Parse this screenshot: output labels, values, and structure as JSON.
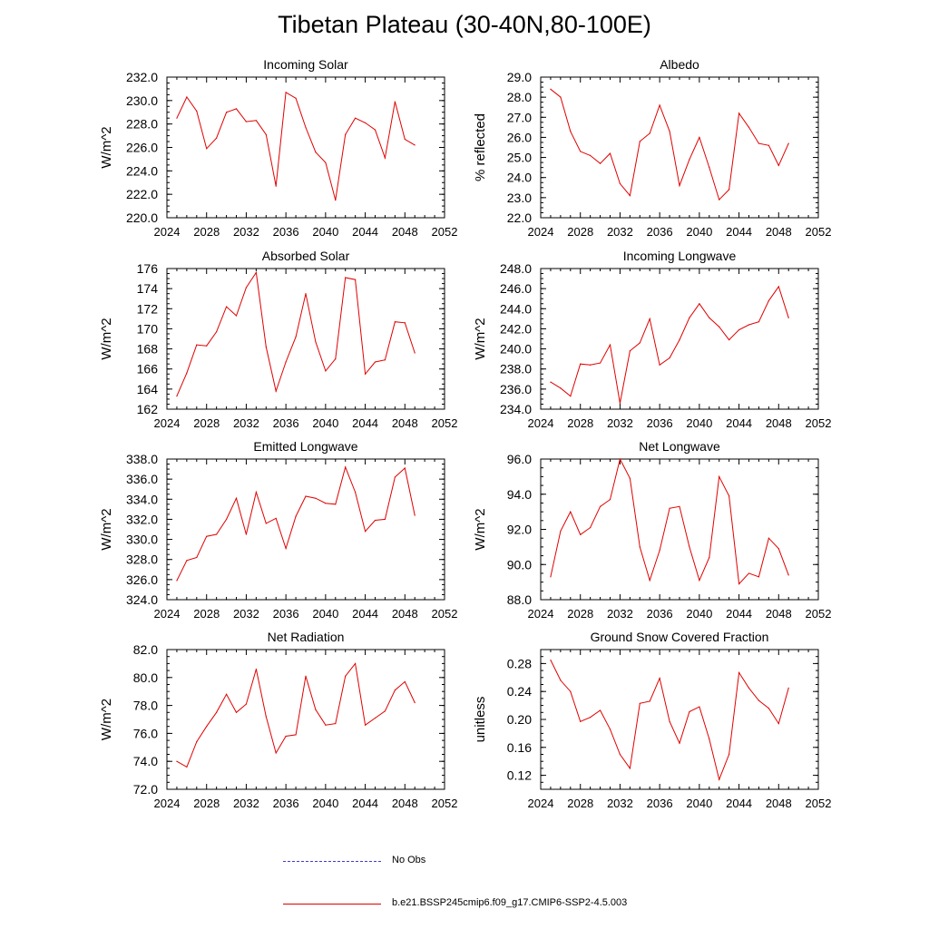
{
  "title": "Tibetan Plateau (30-40N,80-100E)",
  "line_color": "#e00000",
  "chart_data": [
    {
      "type": "line",
      "title": "Incoming Solar",
      "xlabel": "",
      "ylabel": "W/m^2",
      "xlim": [
        2024,
        2052
      ],
      "ylim": [
        220,
        232
      ],
      "xticks": [
        2024,
        2028,
        2032,
        2036,
        2040,
        2044,
        2048,
        2052
      ],
      "xtick_labels": [
        "2024",
        "2028",
        "2032",
        "2036",
        "2040",
        "2044",
        "2048",
        "2052"
      ],
      "yticks": [
        220,
        222,
        224,
        226,
        228,
        230,
        232
      ],
      "ytick_labels": [
        "220.0",
        "222.0",
        "224.0",
        "226.0",
        "228.0",
        "230.0",
        "232.0"
      ],
      "x": [
        2025,
        2026,
        2027,
        2028,
        2029,
        2030,
        2031,
        2032,
        2033,
        2034,
        2035,
        2036,
        2037,
        2038,
        2039,
        2040,
        2041,
        2042,
        2043,
        2044,
        2045,
        2046,
        2047,
        2048,
        2049
      ],
      "y": [
        228.5,
        230.3,
        229.1,
        225.9,
        226.8,
        229.0,
        229.3,
        228.2,
        228.3,
        227.1,
        222.7,
        230.7,
        230.2,
        227.7,
        225.6,
        224.7,
        221.5,
        227.1,
        228.5,
        228.1,
        227.5,
        225.1,
        229.9,
        226.7,
        226.2
      ]
    },
    {
      "type": "line",
      "title": "Albedo",
      "xlabel": "",
      "ylabel": "% reflected",
      "xlim": [
        2024,
        2052
      ],
      "ylim": [
        22,
        29
      ],
      "xticks": [
        2024,
        2028,
        2032,
        2036,
        2040,
        2044,
        2048,
        2052
      ],
      "xtick_labels": [
        "2024",
        "2028",
        "2032",
        "2036",
        "2040",
        "2044",
        "2048",
        "2052"
      ],
      "yticks": [
        22,
        23,
        24,
        25,
        26,
        27,
        28,
        29
      ],
      "ytick_labels": [
        "22.0",
        "23.0",
        "24.0",
        "25.0",
        "26.0",
        "27.0",
        "28.0",
        "29.0"
      ],
      "x": [
        2025,
        2026,
        2027,
        2028,
        2029,
        2030,
        2031,
        2032,
        2033,
        2034,
        2035,
        2036,
        2037,
        2038,
        2039,
        2040,
        2041,
        2042,
        2043,
        2044,
        2045,
        2046,
        2047,
        2048,
        2049
      ],
      "y": [
        28.4,
        28.0,
        26.3,
        25.3,
        25.1,
        24.7,
        25.2,
        23.7,
        23.1,
        25.8,
        26.2,
        27.6,
        26.3,
        23.6,
        24.9,
        26.0,
        24.5,
        22.9,
        23.4,
        27.2,
        26.5,
        25.7,
        25.6,
        24.6,
        25.7
      ]
    },
    {
      "type": "line",
      "title": "Absorbed Solar",
      "xlabel": "",
      "ylabel": "W/m^2",
      "xlim": [
        2024,
        2052
      ],
      "ylim": [
        162,
        176
      ],
      "xticks": [
        2024,
        2028,
        2032,
        2036,
        2040,
        2044,
        2048,
        2052
      ],
      "xtick_labels": [
        "2024",
        "2028",
        "2032",
        "2036",
        "2040",
        "2044",
        "2048",
        "2052"
      ],
      "yticks": [
        162,
        164,
        166,
        168,
        170,
        172,
        174,
        176
      ],
      "ytick_labels": [
        "162",
        "164",
        "166",
        "168",
        "170",
        "172",
        "174",
        "176"
      ],
      "x": [
        2025,
        2026,
        2027,
        2028,
        2029,
        2030,
        2031,
        2032,
        2033,
        2034,
        2035,
        2036,
        2037,
        2038,
        2039,
        2040,
        2041,
        2042,
        2043,
        2044,
        2045,
        2046,
        2047,
        2048,
        2049
      ],
      "y": [
        163.3,
        165.6,
        168.4,
        168.3,
        169.7,
        172.2,
        171.3,
        174.1,
        175.6,
        168.2,
        163.8,
        166.7,
        169.2,
        173.5,
        168.7,
        165.8,
        167.0,
        175.1,
        174.9,
        165.5,
        166.7,
        166.9,
        170.7,
        170.6,
        167.6
      ]
    },
    {
      "type": "line",
      "title": "Incoming Longwave",
      "xlabel": "",
      "ylabel": "W/m^2",
      "xlim": [
        2024,
        2052
      ],
      "ylim": [
        234,
        248
      ],
      "xticks": [
        2024,
        2028,
        2032,
        2036,
        2040,
        2044,
        2048,
        2052
      ],
      "xtick_labels": [
        "2024",
        "2028",
        "2032",
        "2036",
        "2040",
        "2044",
        "2048",
        "2052"
      ],
      "yticks": [
        234,
        236,
        238,
        240,
        242,
        244,
        246,
        248
      ],
      "ytick_labels": [
        "234.0",
        "236.0",
        "238.0",
        "240.0",
        "242.0",
        "244.0",
        "246.0",
        "248.0"
      ],
      "x": [
        2025,
        2026,
        2027,
        2028,
        2029,
        2030,
        2031,
        2032,
        2033,
        2034,
        2035,
        2036,
        2037,
        2038,
        2039,
        2040,
        2041,
        2042,
        2043,
        2044,
        2045,
        2046,
        2047,
        2048,
        2049
      ],
      "y": [
        236.7,
        236.1,
        235.3,
        238.5,
        238.4,
        238.6,
        240.4,
        234.6,
        239.8,
        240.6,
        243.0,
        238.4,
        239.1,
        240.9,
        243.1,
        244.5,
        243.1,
        242.2,
        240.9,
        241.9,
        242.4,
        242.7,
        244.8,
        246.2,
        243.1
      ]
    },
    {
      "type": "line",
      "title": "Emitted Longwave",
      "xlabel": "",
      "ylabel": "W/m^2",
      "xlim": [
        2024,
        2052
      ],
      "ylim": [
        324,
        338
      ],
      "xticks": [
        2024,
        2028,
        2032,
        2036,
        2040,
        2044,
        2048,
        2052
      ],
      "xtick_labels": [
        "2024",
        "2028",
        "2032",
        "2036",
        "2040",
        "2044",
        "2048",
        "2052"
      ],
      "yticks": [
        324,
        326,
        328,
        330,
        332,
        334,
        336,
        338
      ],
      "ytick_labels": [
        "324.0",
        "326.0",
        "328.0",
        "330.0",
        "332.0",
        "334.0",
        "336.0",
        "338.0"
      ],
      "x": [
        2025,
        2026,
        2027,
        2028,
        2029,
        2030,
        2031,
        2032,
        2033,
        2034,
        2035,
        2036,
        2037,
        2038,
        2039,
        2040,
        2041,
        2042,
        2043,
        2044,
        2045,
        2046,
        2047,
        2048,
        2049
      ],
      "y": [
        325.9,
        327.9,
        328.2,
        330.3,
        330.5,
        332.0,
        334.1,
        330.5,
        334.7,
        331.6,
        332.1,
        329.1,
        332.3,
        334.3,
        334.1,
        333.6,
        333.5,
        337.2,
        334.7,
        330.8,
        331.9,
        332.0,
        336.2,
        337.1,
        332.4
      ]
    },
    {
      "type": "line",
      "title": "Net Longwave",
      "xlabel": "",
      "ylabel": "W/m^2",
      "xlim": [
        2024,
        2052
      ],
      "ylim": [
        88,
        96
      ],
      "xticks": [
        2024,
        2028,
        2032,
        2036,
        2040,
        2044,
        2048,
        2052
      ],
      "xtick_labels": [
        "2024",
        "2028",
        "2032",
        "2036",
        "2040",
        "2044",
        "2048",
        "2052"
      ],
      "yticks": [
        88,
        90,
        92,
        94,
        96
      ],
      "ytick_labels": [
        "88.0",
        "90.0",
        "92.0",
        "94.0",
        "96.0"
      ],
      "x": [
        2025,
        2026,
        2027,
        2028,
        2029,
        2030,
        2031,
        2032,
        2033,
        2034,
        2035,
        2036,
        2037,
        2038,
        2039,
        2040,
        2041,
        2042,
        2043,
        2044,
        2045,
        2046,
        2047,
        2048,
        2049
      ],
      "y": [
        89.3,
        91.9,
        93.0,
        91.7,
        92.1,
        93.3,
        93.7,
        96.0,
        94.9,
        91.0,
        89.1,
        90.8,
        93.2,
        93.3,
        91.0,
        89.1,
        90.4,
        95.0,
        93.9,
        88.9,
        89.5,
        89.3,
        91.5,
        90.9,
        89.4
      ]
    },
    {
      "type": "line",
      "title": "Net Radiation",
      "xlabel": "",
      "ylabel": "W/m^2",
      "xlim": [
        2024,
        2052
      ],
      "ylim": [
        72,
        82
      ],
      "xticks": [
        2024,
        2028,
        2032,
        2036,
        2040,
        2044,
        2048,
        2052
      ],
      "xtick_labels": [
        "2024",
        "2028",
        "2032",
        "2036",
        "2040",
        "2044",
        "2048",
        "2052"
      ],
      "yticks": [
        72,
        74,
        76,
        78,
        80,
        82
      ],
      "ytick_labels": [
        "72.0",
        "74.0",
        "76.0",
        "78.0",
        "80.0",
        "82.0"
      ],
      "x": [
        2025,
        2026,
        2027,
        2028,
        2029,
        2030,
        2031,
        2032,
        2033,
        2034,
        2035,
        2036,
        2037,
        2038,
        2039,
        2040,
        2041,
        2042,
        2043,
        2044,
        2045,
        2046,
        2047,
        2048,
        2049
      ],
      "y": [
        74.0,
        73.6,
        75.4,
        76.5,
        77.5,
        78.8,
        77.5,
        78.1,
        80.6,
        77.2,
        74.6,
        75.8,
        75.9,
        80.1,
        77.7,
        76.6,
        76.7,
        80.1,
        81.0,
        76.6,
        77.1,
        77.6,
        79.1,
        79.7,
        78.2
      ]
    },
    {
      "type": "line",
      "title": "Ground Snow Covered Fraction",
      "xlabel": "",
      "ylabel": "unitless",
      "xlim": [
        2024,
        2052
      ],
      "ylim": [
        0.1,
        0.3
      ],
      "xticks": [
        2024,
        2028,
        2032,
        2036,
        2040,
        2044,
        2048,
        2052
      ],
      "xtick_labels": [
        "2024",
        "2028",
        "2032",
        "2036",
        "2040",
        "2044",
        "2048",
        "2052"
      ],
      "yticks": [
        0.12,
        0.16,
        0.2,
        0.24,
        0.28
      ],
      "ytick_labels": [
        "0.12",
        "0.16",
        "0.20",
        "0.24",
        "0.28"
      ],
      "x": [
        2025,
        2026,
        2027,
        2028,
        2029,
        2030,
        2031,
        2032,
        2033,
        2034,
        2035,
        2036,
        2037,
        2038,
        2039,
        2040,
        2041,
        2042,
        2043,
        2044,
        2045,
        2046,
        2047,
        2048,
        2049
      ],
      "y": [
        0.285,
        0.256,
        0.24,
        0.197,
        0.203,
        0.213,
        0.186,
        0.15,
        0.13,
        0.223,
        0.226,
        0.259,
        0.197,
        0.166,
        0.211,
        0.218,
        0.172,
        0.114,
        0.15,
        0.267,
        0.245,
        0.227,
        0.216,
        0.194,
        0.245
      ]
    }
  ],
  "legend": {
    "obs_label": "No Obs",
    "model_label": "b.e21.BSSP245cmip6.f09_g17.CMIP6-SSP2-4.5.003",
    "obs_color": "#3c3cd0",
    "model_color": "#e00000"
  }
}
